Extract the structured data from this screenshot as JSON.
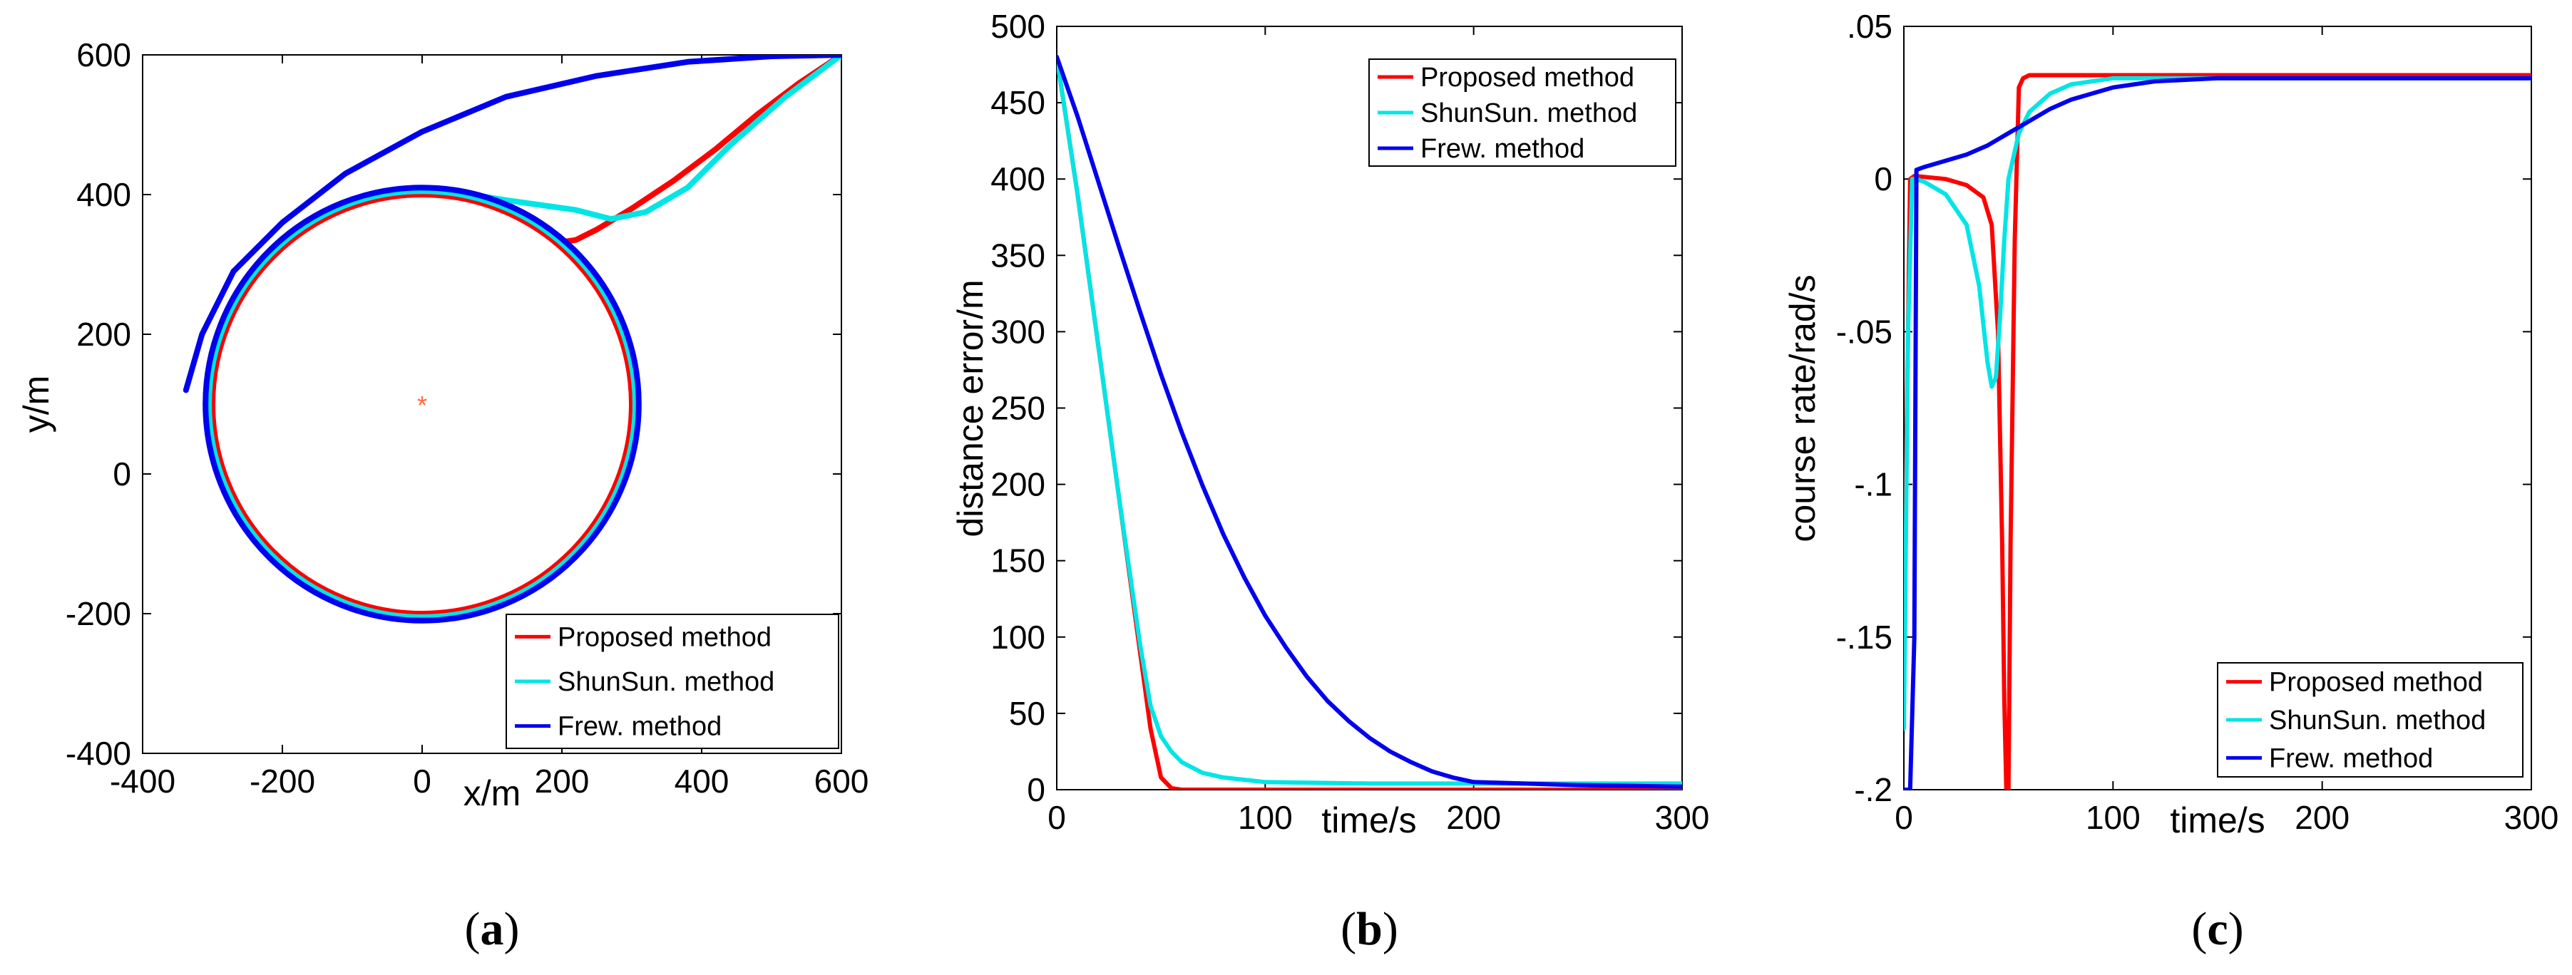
{
  "chart_data": [
    {
      "id": "a",
      "type": "line",
      "subfigure_label": [
        "(",
        "a",
        ")"
      ],
      "xlabel": "x/m",
      "ylabel": "y/m",
      "xlim": [
        -400,
        600
      ],
      "ylim": [
        -400,
        600
      ],
      "xticks": [
        -400,
        -200,
        0,
        200,
        400,
        600
      ],
      "yticks": [
        -400,
        -200,
        0,
        200,
        400,
        600
      ],
      "center_marker": {
        "x": 0,
        "y": 100,
        "symbol": "*",
        "color": "#ff6a3d"
      },
      "legend": {
        "position": "bottom-right",
        "entries": [
          "Proposed method",
          "ShunSun. method",
          "Frew. method"
        ]
      },
      "series": [
        {
          "name": "Proposed method",
          "color": "#ff0000",
          "x": [
            600,
            540,
            480,
            420,
            360,
            300,
            250,
            220,
            200,
            190
          ],
          "y": [
            600,
            560,
            515,
            465,
            420,
            380,
            350,
            335,
            332,
            332
          ],
          "orbit": {
            "cx": 0,
            "cy": 100,
            "r": 300
          }
        },
        {
          "name": "ShunSun. method",
          "color": "#00e5e5",
          "x": [
            600,
            520,
            440,
            380,
            320,
            270,
            220,
            170,
            120,
            70,
            20,
            -20
          ],
          "y": [
            600,
            540,
            470,
            410,
            375,
            365,
            378,
            385,
            392,
            400,
            405,
            405
          ],
          "orbit": {
            "cx": 0,
            "cy": 100,
            "r": 305
          }
        },
        {
          "name": "Frew. method",
          "color": "#0000ee",
          "x": [
            600,
            500,
            380,
            250,
            120,
            0,
            -110,
            -200,
            -270,
            -315,
            -338
          ],
          "y": [
            600,
            598,
            590,
            570,
            540,
            490,
            430,
            360,
            290,
            200,
            120
          ],
          "orbit": {
            "cx": 0,
            "cy": 100,
            "r": 310
          }
        }
      ]
    },
    {
      "id": "b",
      "type": "line",
      "subfigure_label": [
        "(",
        "b",
        ")"
      ],
      "xlabel": "time/s",
      "ylabel": "distance error/m",
      "xlim": [
        0,
        300
      ],
      "ylim": [
        0,
        500
      ],
      "xticks": [
        0,
        100,
        200,
        300
      ],
      "yticks": [
        0,
        50,
        100,
        150,
        200,
        250,
        300,
        350,
        400,
        450,
        500
      ],
      "legend": {
        "position": "top-right",
        "entries": [
          "Proposed method",
          "ShunSun. method",
          "Frew. method"
        ]
      },
      "series": [
        {
          "name": "Proposed method",
          "color": "#ff0000",
          "x": [
            0,
            10,
            20,
            30,
            40,
            45,
            50,
            55,
            60,
            100,
            200,
            300
          ],
          "y": [
            480,
            390,
            290,
            190,
            90,
            40,
            8,
            1,
            0,
            0,
            0,
            0
          ]
        },
        {
          "name": "ShunSun. method",
          "color": "#00e5e5",
          "x": [
            0,
            10,
            20,
            30,
            40,
            45,
            50,
            55,
            60,
            70,
            80,
            100,
            150,
            200,
            300
          ],
          "y": [
            480,
            390,
            290,
            190,
            95,
            55,
            35,
            25,
            18,
            11,
            8,
            5,
            4,
            4,
            4
          ]
        },
        {
          "name": "Frew. method",
          "color": "#0000ee",
          "x": [
            0,
            10,
            20,
            30,
            40,
            50,
            60,
            70,
            80,
            90,
            100,
            110,
            120,
            130,
            140,
            150,
            160,
            170,
            180,
            190,
            200,
            250,
            300
          ],
          "y": [
            480,
            441,
            398,
            355,
            313,
            272,
            234,
            199,
            167,
            139,
            114,
            93,
            74,
            58,
            45,
            34,
            25,
            18,
            12,
            8,
            5,
            3,
            2
          ]
        }
      ]
    },
    {
      "id": "c",
      "type": "line",
      "subfigure_label": [
        "(",
        "c",
        ")"
      ],
      "xlabel": "time/s",
      "ylabel": "course rate/rad/s",
      "xlim": [
        0,
        300
      ],
      "ylim": [
        -0.2,
        0.05
      ],
      "xticks": [
        0,
        100,
        200,
        300
      ],
      "yticks": [
        -0.2,
        -0.15,
        -0.1,
        -0.05,
        0,
        0.05
      ],
      "legend": {
        "position": "bottom-right",
        "entries": [
          "Proposed method",
          "ShunSun. method",
          "Frew. method"
        ]
      },
      "series": [
        {
          "name": "Proposed method",
          "color": "#ff0000",
          "x": [
            0,
            1,
            2,
            3,
            5,
            20,
            30,
            38,
            42,
            45,
            47,
            48,
            49,
            50,
            51,
            53,
            55,
            57,
            60,
            100,
            300
          ],
          "y": [
            -0.145,
            -0.1,
            -0.05,
            0,
            0.001,
            0,
            -0.002,
            -0.006,
            -0.015,
            -0.05,
            -0.12,
            -0.17,
            -0.2,
            -0.2,
            -0.12,
            -0.02,
            0.03,
            0.033,
            0.034,
            0.034,
            0.034
          ]
        },
        {
          "name": "ShunSun. method",
          "color": "#00e5e5",
          "x": [
            0,
            2,
            4,
            6,
            10,
            20,
            30,
            36,
            40,
            42,
            44,
            46,
            48,
            50,
            55,
            60,
            70,
            80,
            100,
            150,
            300
          ],
          "y": [
            -0.18,
            -0.05,
            0,
            0,
            -0.001,
            -0.005,
            -0.015,
            -0.035,
            -0.06,
            -0.068,
            -0.065,
            -0.045,
            -0.02,
            0,
            0.015,
            0.022,
            0.028,
            0.031,
            0.033,
            0.033,
            0.033
          ]
        },
        {
          "name": "Frew. method",
          "color": "#0000ee",
          "x": [
            0,
            3,
            5,
            6,
            10,
            20,
            30,
            40,
            50,
            60,
            70,
            80,
            90,
            100,
            120,
            150,
            200,
            300
          ],
          "y": [
            -0.2,
            -0.2,
            -0.15,
            0.003,
            0.004,
            0.006,
            0.008,
            0.011,
            0.015,
            0.019,
            0.023,
            0.026,
            0.028,
            0.03,
            0.032,
            0.033,
            0.033,
            0.033
          ]
        }
      ]
    }
  ]
}
